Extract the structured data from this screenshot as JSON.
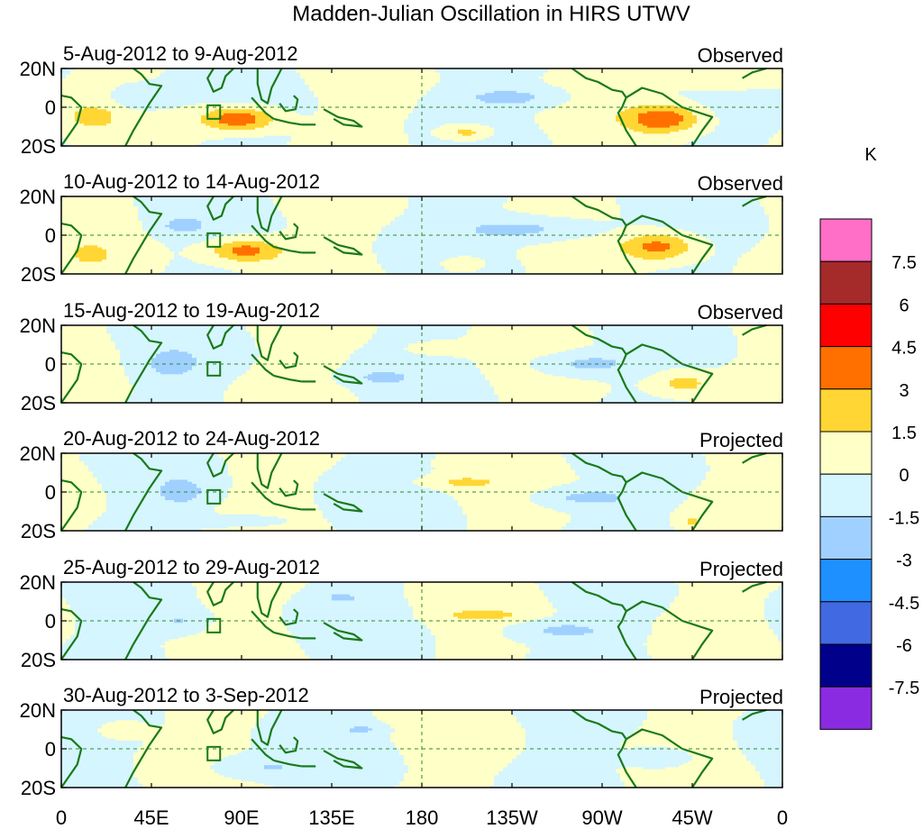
{
  "chart_data": {
    "type": "heatmap",
    "title": "Madden-Julian Oscillation in HIRS UTWV",
    "units_label": "K",
    "y_ticks": [
      "20N",
      "0",
      "20S"
    ],
    "x_ticks": [
      "0",
      "45E",
      "90E",
      "135E",
      "180",
      "135W",
      "90W",
      "45W",
      "0"
    ],
    "x_tick_lons": [
      0,
      45,
      90,
      135,
      180,
      225,
      270,
      315,
      360
    ],
    "lon_range": [
      0,
      360
    ],
    "lat_range": [
      -20,
      20
    ],
    "colorbar": {
      "labels": [
        "7.5",
        "6",
        "4.5",
        "3",
        "1.5",
        "0",
        "-1.5",
        "-3",
        "-4.5",
        "-6",
        "-7.5"
      ],
      "colors": [
        "#ff6ec7",
        "#a52a2a",
        "#ff0000",
        "#ff7000",
        "#ffd633",
        "#ffffc8",
        "#d5f5ff",
        "#a0d0ff",
        "#1e90ff",
        "#4169e1",
        "#00008b",
        "#8a2be2"
      ]
    },
    "panels": [
      {
        "date_range": "5-Aug-2012 to 9-Aug-2012",
        "status": "Observed",
        "anomalies": [
          {
            "lon": 88,
            "lat": -6,
            "amp": 4.6,
            "slon": 18,
            "slat": 6
          },
          {
            "lon": 300,
            "lat": -6,
            "amp": 4.2,
            "slon": 18,
            "slat": 7
          },
          {
            "lon": 15,
            "lat": -5,
            "amp": 2.0,
            "slon": 12,
            "slat": 6
          },
          {
            "lon": 202,
            "lat": -13,
            "amp": 2.4,
            "slon": 12,
            "slat": 4
          },
          {
            "lon": 225,
            "lat": 5,
            "amp": -2.0,
            "slon": 25,
            "slat": 5
          },
          {
            "lon": 40,
            "lat": 5,
            "amp": -1.8,
            "slon": 14,
            "slat": 6
          },
          {
            "lon": 330,
            "lat": 15,
            "amp": 1.5,
            "slon": 25,
            "slat": 7
          }
        ]
      },
      {
        "date_range": "10-Aug-2012 to 14-Aug-2012",
        "status": "Observed",
        "anomalies": [
          {
            "lon": 92,
            "lat": -8,
            "amp": 3.8,
            "slon": 18,
            "slat": 6
          },
          {
            "lon": 298,
            "lat": -6,
            "amp": 3.6,
            "slon": 18,
            "slat": 7
          },
          {
            "lon": 15,
            "lat": -10,
            "amp": 1.9,
            "slon": 10,
            "slat": 5
          },
          {
            "lon": 232,
            "lat": 3,
            "amp": -2.2,
            "slon": 35,
            "slat": 6
          },
          {
            "lon": 60,
            "lat": 5,
            "amp": -1.8,
            "slon": 12,
            "slat": 5
          },
          {
            "lon": 200,
            "lat": -15,
            "amp": 1.8,
            "slon": 10,
            "slat": 4
          }
        ]
      },
      {
        "date_range": "15-Aug-2012 to 19-Aug-2012",
        "status": "Observed",
        "anomalies": [
          {
            "lon": 55,
            "lat": 0,
            "amp": -2.0,
            "slon": 15,
            "slat": 8
          },
          {
            "lon": 262,
            "lat": 0,
            "amp": -2.2,
            "slon": 25,
            "slat": 6
          },
          {
            "lon": 310,
            "lat": -10,
            "amp": 2.2,
            "slon": 15,
            "slat": 6
          },
          {
            "lon": 160,
            "lat": -7,
            "amp": -1.7,
            "slon": 15,
            "slat": 4
          },
          {
            "lon": 190,
            "lat": 8,
            "amp": 1.7,
            "slon": 14,
            "slat": 3
          }
        ]
      },
      {
        "date_range": "20-Aug-2012 to 24-Aug-2012",
        "status": "Projected",
        "anomalies": [
          {
            "lon": 60,
            "lat": 0,
            "amp": -2.0,
            "slon": 14,
            "slat": 8
          },
          {
            "lon": 262,
            "lat": -3,
            "amp": -2.0,
            "slon": 25,
            "slat": 5
          },
          {
            "lon": 200,
            "lat": 5,
            "amp": 1.7,
            "slon": 18,
            "slat": 3
          },
          {
            "lon": 315,
            "lat": -15,
            "amp": 1.6,
            "slon": 6,
            "slat": 4
          },
          {
            "lon": 90,
            "lat": -15,
            "amp": -1.7,
            "slon": 20,
            "slat": 3
          }
        ]
      },
      {
        "date_range": "25-Aug-2012 to 29-Aug-2012",
        "status": "Projected",
        "anomalies": [
          {
            "lon": 210,
            "lat": 3,
            "amp": 1.8,
            "slon": 20,
            "slat": 3
          },
          {
            "lon": 60,
            "lat": 0,
            "amp": -1.6,
            "slon": 12,
            "slat": 6
          },
          {
            "lon": 250,
            "lat": -5,
            "amp": -1.8,
            "slon": 25,
            "slat": 5
          },
          {
            "lon": 140,
            "lat": 12,
            "amp": -1.6,
            "slon": 10,
            "slat": 3
          }
        ]
      },
      {
        "date_range": "30-Aug-2012 to 3-Sep-2012",
        "status": "Projected",
        "anomalies": [
          {
            "lon": 150,
            "lat": 10,
            "amp": -1.6,
            "slon": 10,
            "slat": 3
          },
          {
            "lon": 100,
            "lat": -10,
            "amp": -1.6,
            "slon": 25,
            "slat": 6
          },
          {
            "lon": 30,
            "lat": 10,
            "amp": 1.6,
            "slon": 10,
            "slat": 4
          },
          {
            "lon": 300,
            "lat": -5,
            "amp": -1.6,
            "slon": 14,
            "slat": 5
          }
        ]
      }
    ]
  }
}
